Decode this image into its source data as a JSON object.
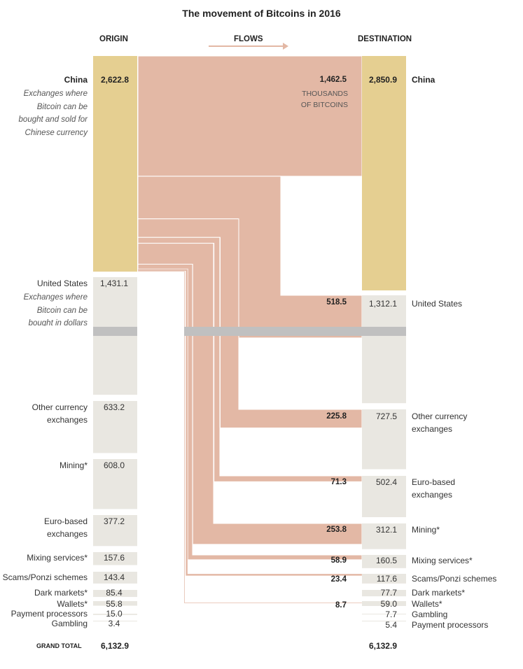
{
  "title": "The movement of Bitcoins in 2016",
  "headers": {
    "origin": "ORIGIN",
    "flows": "FLOWS",
    "destination": "DESTINATION"
  },
  "unit_note": "THOUSANDS\nOF BITCOINS",
  "colors": {
    "china": "#e5cf91",
    "other": "#e9e7e1",
    "flow": "#e3b8a5",
    "break": "#c0c0c0",
    "arrow": "#e3b8a5"
  },
  "origin": [
    {
      "label": "China",
      "value": 2622.8,
      "value_text": "2,622.8",
      "subtitle": "Exchanges where\nBitcoin can be\nbought and sold for\nChinese currency"
    },
    {
      "label": "United States",
      "value": 1431.1,
      "value_text": "1,431.1",
      "subtitle": "Exchanges where\nBitcoin can be\nbought in dollars"
    },
    {
      "label": "Other currency\nexchanges",
      "value": 633.2,
      "value_text": "633.2"
    },
    {
      "label": "Mining*",
      "value": 608.0,
      "value_text": "608.0"
    },
    {
      "label": "Euro-based\nexchanges",
      "value": 377.2,
      "value_text": "377.2"
    },
    {
      "label": "Mixing services*",
      "value": 157.6,
      "value_text": "157.6"
    },
    {
      "label": "Scams/Ponzi schemes",
      "value": 143.4,
      "value_text": "143.4"
    },
    {
      "label": "Dark markets*",
      "value": 85.4,
      "value_text": "85.4"
    },
    {
      "label": "Wallets*",
      "value": 55.8,
      "value_text": "55.8"
    },
    {
      "label": "Payment processors",
      "value": 15.0,
      "value_text": "15.0"
    },
    {
      "label": "Gambling",
      "value": 3.4,
      "value_text": "3.4"
    }
  ],
  "destination": [
    {
      "label": "China",
      "value": 2850.9,
      "value_text": "2,850.9"
    },
    {
      "label": "United States",
      "value": 1312.1,
      "value_text": "1,312.1"
    },
    {
      "label": "Other currency\nexchanges",
      "value": 727.5,
      "value_text": "727.5"
    },
    {
      "label": "Euro-based\nexchanges",
      "value": 502.4,
      "value_text": "502.4"
    },
    {
      "label": "Mining*",
      "value": 312.1,
      "value_text": "312.1"
    },
    {
      "label": "Mixing services*",
      "value": 160.5,
      "value_text": "160.5"
    },
    {
      "label": "Scams/Ponzi schemes",
      "value": 117.6,
      "value_text": "117.6"
    },
    {
      "label": "Dark markets*",
      "value": 77.7,
      "value_text": "77.7"
    },
    {
      "label": "Wallets*",
      "value": 59.0,
      "value_text": "59.0"
    },
    {
      "label": "Gambling",
      "value": 7.7,
      "value_text": "7.7"
    },
    {
      "label": "Payment processors",
      "value": 5.4,
      "value_text": "5.4"
    }
  ],
  "flows": [
    {
      "from": "China",
      "to": "China",
      "value": 1462.5,
      "value_text": "1,462.5"
    },
    {
      "from": "China",
      "to": "United States",
      "value": 518.5,
      "value_text": "518.5"
    },
    {
      "from": "China",
      "to": "Other currency exchanges",
      "value": 225.8,
      "value_text": "225.8"
    },
    {
      "from": "China",
      "to": "Euro-based exchanges",
      "value": 71.3,
      "value_text": "71.3"
    },
    {
      "from": "China",
      "to": "Mining",
      "value": 253.8,
      "value_text": "253.8"
    },
    {
      "from": "China",
      "to": "Mixing services",
      "value": 58.9,
      "value_text": "58.9"
    },
    {
      "from": "China",
      "to": "Scams/Ponzi schemes",
      "value": 23.4,
      "value_text": "23.4"
    },
    {
      "from": "China",
      "to": "Wallets",
      "value": 8.7,
      "value_text": "8.7"
    }
  ],
  "grand_total": {
    "label": "GRAND TOTAL",
    "origin_text": "6,132.9",
    "destination_text": "6,132.9"
  }
}
